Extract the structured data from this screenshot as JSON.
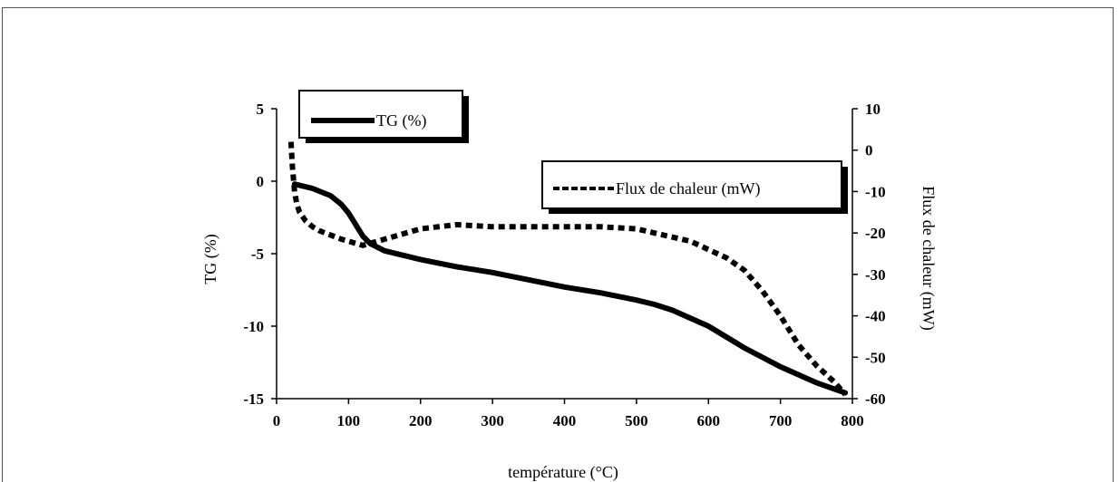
{
  "chart_data": {
    "type": "line",
    "xlabel": "température (°C)",
    "ylabel_left": "TG (%)",
    "ylabel_right": "Flux de chaleur (mW)",
    "xlim": [
      0,
      800
    ],
    "ylim_left": [
      -15,
      5
    ],
    "ylim_right": [
      -60,
      10
    ],
    "x_ticks": [
      "0",
      "100",
      "200",
      "300",
      "400",
      "500",
      "600",
      "700",
      "800"
    ],
    "y_left_ticks": [
      "5",
      "0",
      "-5",
      "-10",
      "-15"
    ],
    "y_right_ticks": [
      "10",
      "0",
      "-10",
      "-20",
      "-30",
      "-40",
      "-50",
      "-60"
    ],
    "grid": false,
    "series": [
      {
        "name": "TG (%)",
        "axis": "left",
        "style": "solid",
        "color": "#000000",
        "x": [
          25,
          50,
          75,
          90,
          100,
          110,
          120,
          130,
          150,
          200,
          250,
          300,
          350,
          400,
          450,
          500,
          525,
          550,
          600,
          650,
          700,
          750,
          790
        ],
        "y": [
          -0.2,
          -0.5,
          -1.0,
          -1.6,
          -2.2,
          -3.0,
          -3.8,
          -4.3,
          -4.8,
          -5.4,
          -5.9,
          -6.3,
          -6.8,
          -7.3,
          -7.7,
          -8.2,
          -8.5,
          -8.9,
          -10.0,
          -11.5,
          -12.8,
          -13.9,
          -14.6
        ]
      },
      {
        "name": "Flux de chaleur (mW)",
        "axis": "right",
        "style": "dashed",
        "color": "#000000",
        "x": [
          20,
          22,
          25,
          28,
          32,
          40,
          50,
          60,
          75,
          90,
          100,
          110,
          120,
          130,
          140,
          160,
          180,
          200,
          250,
          300,
          350,
          400,
          450,
          500,
          525,
          550,
          575,
          600,
          625,
          650,
          675,
          700,
          725,
          750,
          775,
          790
        ],
        "y": [
          2,
          -4,
          -10,
          -13,
          -15,
          -17,
          -18.5,
          -19.5,
          -20.5,
          -21.5,
          -22,
          -22.5,
          -23,
          -22.5,
          -22,
          -21,
          -20,
          -19,
          -18,
          -18.5,
          -18.5,
          -18.5,
          -18.5,
          -19,
          -20,
          -21,
          -22,
          -24,
          -26,
          -29,
          -34,
          -40,
          -47,
          -52,
          -56,
          -59
        ]
      }
    ]
  }
}
